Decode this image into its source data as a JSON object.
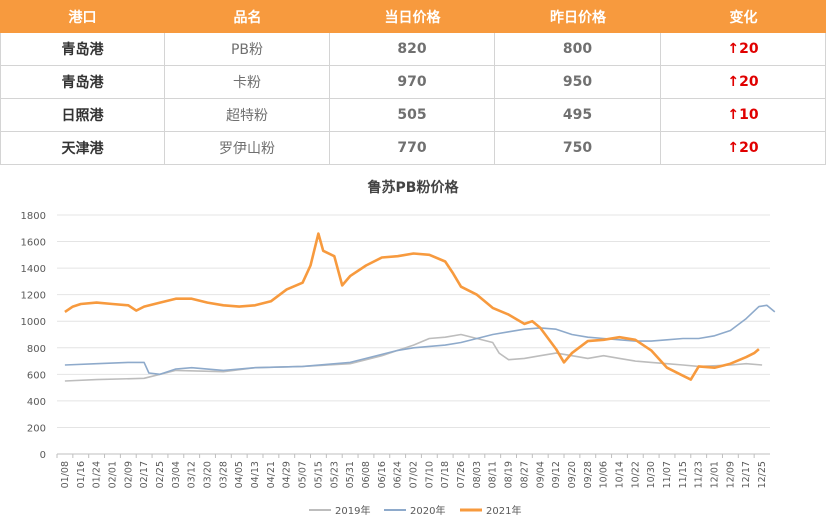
{
  "table": {
    "headers": [
      "港口",
      "品名",
      "当日价格",
      "昨日价格",
      "变化"
    ],
    "rows": [
      {
        "port": "青岛港",
        "product": "PB粉",
        "today": "820",
        "yesterday": "800",
        "change": "↑20"
      },
      {
        "port": "青岛港",
        "product": "卡粉",
        "today": "970",
        "yesterday": "950",
        "change": "↑20"
      },
      {
        "port": "日照港",
        "product": "超特粉",
        "today": "505",
        "yesterday": "495",
        "change": "↑10"
      },
      {
        "port": "天津港",
        "product": "罗伊山粉",
        "today": "770",
        "yesterday": "750",
        "change": "↑20"
      }
    ]
  },
  "colors": {
    "header": "#f79a3e",
    "up": "#e00000",
    "s2019": "#bdbdbd",
    "s2020": "#8eaacb",
    "s2021": "#f79a3e"
  },
  "chart_data": {
    "type": "line",
    "title": "鲁苏PB粉价格",
    "ylim": [
      0,
      1800
    ],
    "yticks": [
      "1800",
      "1600",
      "1400",
      "1200",
      "1000",
      "800",
      "600",
      "400",
      "200",
      "0"
    ],
    "xticks": [
      "01/08",
      "01/16",
      "01/24",
      "02/01",
      "02/09",
      "02/17",
      "02/25",
      "03/04",
      "03/12",
      "03/20",
      "03/28",
      "04/05",
      "04/13",
      "04/21",
      "04/29",
      "05/07",
      "05/15",
      "05/23",
      "05/31",
      "06/08",
      "06/16",
      "06/24",
      "07/02",
      "07/10",
      "07/18",
      "07/26",
      "08/03",
      "08/11",
      "08/19",
      "08/27",
      "09/04",
      "09/12",
      "09/20",
      "09/28",
      "10/06",
      "10/14",
      "10/22",
      "10/30",
      "11/07",
      "11/15",
      "11/23",
      "12/01",
      "12/09",
      "12/17",
      "12/25"
    ],
    "grid": true,
    "legend": "bottom",
    "series": [
      {
        "name": "2019年",
        "points": [
          [
            0,
            550
          ],
          [
            2,
            560
          ],
          [
            5,
            570
          ],
          [
            6,
            600
          ],
          [
            7,
            630
          ],
          [
            10,
            620
          ],
          [
            12,
            650
          ],
          [
            15,
            660
          ],
          [
            18,
            680
          ],
          [
            19,
            710
          ],
          [
            20,
            740
          ],
          [
            21,
            780
          ],
          [
            22,
            820
          ],
          [
            23,
            870
          ],
          [
            24,
            880
          ],
          [
            25,
            900
          ],
          [
            26,
            870
          ],
          [
            27,
            840
          ],
          [
            27.4,
            760
          ],
          [
            28,
            710
          ],
          [
            29,
            720
          ],
          [
            30,
            740
          ],
          [
            31,
            760
          ],
          [
            32,
            740
          ],
          [
            33,
            720
          ],
          [
            34,
            740
          ],
          [
            35,
            720
          ],
          [
            36,
            700
          ],
          [
            37,
            690
          ],
          [
            38,
            680
          ],
          [
            39,
            670
          ],
          [
            40,
            660
          ],
          [
            42,
            670
          ],
          [
            43,
            680
          ],
          [
            44,
            670
          ]
        ]
      },
      {
        "name": "2020年",
        "points": [
          [
            0,
            670
          ],
          [
            2,
            680
          ],
          [
            4,
            690
          ],
          [
            5,
            690
          ],
          [
            5.3,
            610
          ],
          [
            6,
            600
          ],
          [
            7,
            640
          ],
          [
            8,
            650
          ],
          [
            10,
            630
          ],
          [
            12,
            650
          ],
          [
            15,
            660
          ],
          [
            18,
            690
          ],
          [
            19,
            720
          ],
          [
            20,
            750
          ],
          [
            21,
            780
          ],
          [
            22,
            800
          ],
          [
            24,
            820
          ],
          [
            25,
            840
          ],
          [
            26,
            870
          ],
          [
            27,
            900
          ],
          [
            28,
            920
          ],
          [
            29,
            940
          ],
          [
            30,
            950
          ],
          [
            31,
            940
          ],
          [
            32,
            900
          ],
          [
            33,
            880
          ],
          [
            34,
            870
          ],
          [
            35,
            860
          ],
          [
            36,
            850
          ],
          [
            37,
            850
          ],
          [
            38,
            860
          ],
          [
            39,
            870
          ],
          [
            40,
            870
          ],
          [
            41,
            890
          ],
          [
            42,
            930
          ],
          [
            43,
            1020
          ],
          [
            43.8,
            1110
          ],
          [
            44.3,
            1120
          ],
          [
            44.8,
            1070
          ]
        ]
      },
      {
        "name": "2021年",
        "points": [
          [
            0,
            1070
          ],
          [
            0.5,
            1110
          ],
          [
            1,
            1130
          ],
          [
            2,
            1140
          ],
          [
            3,
            1130
          ],
          [
            4,
            1120
          ],
          [
            4.5,
            1080
          ],
          [
            5,
            1110
          ],
          [
            6,
            1140
          ],
          [
            7,
            1170
          ],
          [
            8,
            1170
          ],
          [
            9,
            1140
          ],
          [
            10,
            1120
          ],
          [
            11,
            1110
          ],
          [
            12,
            1120
          ],
          [
            13,
            1150
          ],
          [
            14,
            1240
          ],
          [
            15,
            1290
          ],
          [
            15.5,
            1420
          ],
          [
            16,
            1660
          ],
          [
            16.3,
            1530
          ],
          [
            17,
            1490
          ],
          [
            17.5,
            1270
          ],
          [
            18,
            1340
          ],
          [
            19,
            1420
          ],
          [
            20,
            1480
          ],
          [
            21,
            1490
          ],
          [
            22,
            1510
          ],
          [
            23,
            1500
          ],
          [
            24,
            1450
          ],
          [
            24.5,
            1360
          ],
          [
            25,
            1260
          ],
          [
            26,
            1200
          ],
          [
            27,
            1100
          ],
          [
            28,
            1050
          ],
          [
            29,
            980
          ],
          [
            29.5,
            1000
          ],
          [
            30,
            950
          ],
          [
            31,
            790
          ],
          [
            31.5,
            690
          ],
          [
            32,
            760
          ],
          [
            33,
            850
          ],
          [
            34,
            860
          ],
          [
            35,
            880
          ],
          [
            36,
            860
          ],
          [
            37,
            780
          ],
          [
            38,
            650
          ],
          [
            39,
            590
          ],
          [
            39.5,
            560
          ],
          [
            40,
            660
          ],
          [
            41,
            650
          ],
          [
            42,
            680
          ],
          [
            43,
            730
          ],
          [
            43.5,
            760
          ],
          [
            43.8,
            790
          ]
        ]
      }
    ]
  }
}
